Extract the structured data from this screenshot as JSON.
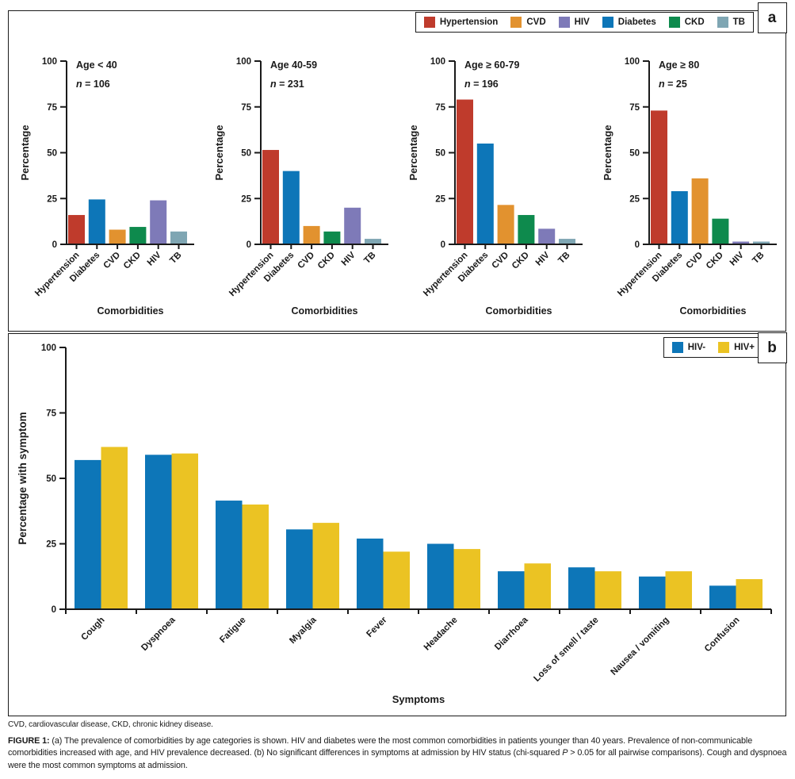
{
  "palette": {
    "Hypertension": "#bf3b2c",
    "Diabetes": "#0d76b8",
    "CVD": "#e2922f",
    "CKD": "#0e8a4d",
    "HIV": "#7e7ab8",
    "TB": "#7fa6b3",
    "HIV-": "#0d76b8",
    "HIV+": "#ebc323"
  },
  "panel_a": {
    "label": "a",
    "legend": [
      "Hypertension",
      "CVD",
      "HIV",
      "Diabetes",
      "CKD",
      "TB"
    ]
  },
  "panel_b": {
    "label": "b",
    "legend": [
      "HIV-",
      "HIV+"
    ]
  },
  "chart_data": [
    {
      "type": "bar",
      "panel": "a",
      "title": "Age < 40",
      "subtitle_italic": "n",
      "subtitle_rest": " = 106",
      "categories": [
        "Hypertension",
        "Diabetes",
        "CVD",
        "CKD",
        "HIV",
        "TB"
      ],
      "values": [
        16,
        24.5,
        8,
        9.5,
        24,
        7
      ],
      "xlabel": "Comorbidities",
      "ylabel": "Percentage",
      "ylim": [
        0,
        100
      ],
      "yticks": [
        0,
        25,
        50,
        75,
        100
      ]
    },
    {
      "type": "bar",
      "panel": "a",
      "title": "Age 40-59",
      "subtitle_italic": "n",
      "subtitle_rest": " = 231",
      "categories": [
        "Hypertension",
        "Diabetes",
        "CVD",
        "CKD",
        "HIV",
        "TB"
      ],
      "values": [
        51.5,
        40,
        10,
        7,
        20,
        3
      ],
      "xlabel": "Comorbidities",
      "ylabel": "Percentage",
      "ylim": [
        0,
        100
      ],
      "yticks": [
        0,
        25,
        50,
        75,
        100
      ]
    },
    {
      "type": "bar",
      "panel": "a",
      "title": "Age ≥ 60-79",
      "subtitle_italic": "n",
      "subtitle_rest": " = 196",
      "categories": [
        "Hypertension",
        "Diabetes",
        "CVD",
        "CKD",
        "HIV",
        "TB"
      ],
      "values": [
        79,
        55,
        21.5,
        16,
        8.5,
        3
      ],
      "xlabel": "Comorbidities",
      "ylabel": "Percentage",
      "ylim": [
        0,
        100
      ],
      "yticks": [
        0,
        25,
        50,
        75,
        100
      ]
    },
    {
      "type": "bar",
      "panel": "a",
      "title": "Age ≥ 80",
      "subtitle_italic": "n",
      "subtitle_rest": " = 25",
      "categories": [
        "Hypertension",
        "Diabetes",
        "CVD",
        "CKD",
        "HIV",
        "TB"
      ],
      "values": [
        73,
        29,
        36,
        14,
        1.5,
        1.5
      ],
      "xlabel": "Comorbidities",
      "ylabel": "Percentage",
      "ylim": [
        0,
        100
      ],
      "yticks": [
        0,
        25,
        50,
        75,
        100
      ]
    },
    {
      "type": "bar",
      "panel": "b",
      "categories": [
        "Cough",
        "Dyspnoea",
        "Fatigue",
        "Myalgia",
        "Fever",
        "Headache",
        "Diarrhoea",
        "Loss of smell / taste",
        "Nausea / vomiting",
        "Confusion"
      ],
      "series": [
        {
          "name": "HIV-",
          "values": [
            57,
            59,
            41.5,
            30.5,
            27,
            25,
            14.5,
            16,
            12.5,
            9
          ]
        },
        {
          "name": "HIV+",
          "values": [
            62,
            59.5,
            40,
            33,
            22,
            23,
            17.5,
            14.5,
            14.5,
            11.5
          ]
        }
      ],
      "xlabel": "Symptoms",
      "ylabel": "Percentage with symptom",
      "ylim": [
        0,
        100
      ],
      "yticks": [
        0,
        25,
        50,
        75,
        100
      ],
      "legend_position": "top-right"
    }
  ],
  "caption": {
    "abbreviations": "CVD, cardiovascular disease, CKD, chronic kidney disease.",
    "label": "FIGURE 1:",
    "part1": " (a) The prevalence of comorbidities by age categories is shown. HIV and diabetes were the most common comorbidities in patients younger than 40 years. Prevalence of non-communicable comorbidities increased with age, and HIV prevalence decreased. (b) No significant differences in symptoms at admission by HIV status (chi-squared ",
    "p_italic": "P",
    "part2": " > 0.05 for all pairwise comparisons). Cough and dyspnoea were the most common symptoms at admission."
  }
}
